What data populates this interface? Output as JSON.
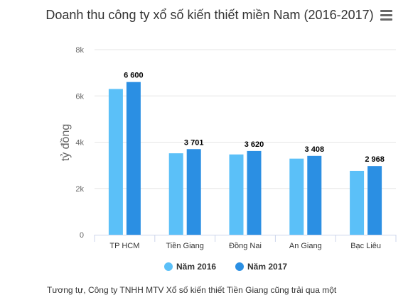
{
  "chart_data": {
    "type": "bar",
    "title": "Doanh thu công ty xổ số kiến thiết miền Nam (2016-2017)",
    "ylabel": "tỷ đồng",
    "xlabel": "",
    "categories": [
      "TP HCM",
      "Tiền Giang",
      "Đồng Nai",
      "An Giang",
      "Bạc Liêu"
    ],
    "series": [
      {
        "name": "Năm 2016",
        "color": "#5bc0f8",
        "values": [
          6300,
          3520,
          3470,
          3290,
          2760
        ],
        "labels": [
          "",
          "",
          "",
          "",
          ""
        ]
      },
      {
        "name": "Năm 2017",
        "color": "#2b8fe3",
        "values": [
          6600,
          3701,
          3620,
          3408,
          2968
        ],
        "labels": [
          "6 600",
          "3 701",
          "3 620",
          "3 408",
          "2 968"
        ]
      }
    ],
    "ylim": [
      0,
      8000
    ],
    "yticks": [
      0,
      2000,
      4000,
      6000,
      8000
    ],
    "ytick_labels": [
      "0",
      "2k",
      "4k",
      "6k",
      "8k"
    ],
    "grid": true,
    "legend_position": "bottom"
  },
  "caption": "Tương tự, Công ty TNHH MTV Xổ số kiến thiết Tiền Giang cũng trải qua một"
}
